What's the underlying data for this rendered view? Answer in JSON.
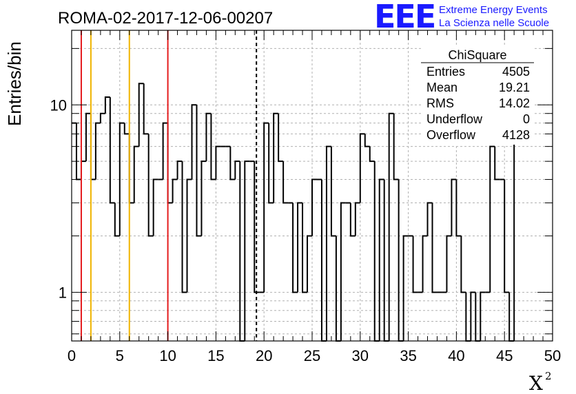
{
  "title": "ROMA-02-2017-12-06-00207",
  "logo": {
    "mark": "EEE",
    "line1": "Extreme Energy Events",
    "line2": "La Scienza nelle Scuole",
    "color": "#1a1aff"
  },
  "stats": {
    "name": "ChiSquare",
    "rows": [
      {
        "label": "Entries",
        "value": "4505"
      },
      {
        "label": "Mean",
        "value": "19.21"
      },
      {
        "label": "RMS",
        "value": "14.02"
      },
      {
        "label": "Underflow",
        "value": "0"
      },
      {
        "label": "Overflow",
        "value": "4128"
      }
    ]
  },
  "chart_data": {
    "type": "bar",
    "histogram": "step",
    "title": "ROMA-02-2017-12-06-00207",
    "xlabel": "X",
    "xlabel_superscript": "2",
    "ylabel": "Entries/bin",
    "xlim": [
      0,
      50
    ],
    "ylim": [
      0.55,
      25
    ],
    "yscale": "log",
    "grid": true,
    "legend": "top-right",
    "x_ticks": [
      0,
      5,
      10,
      15,
      20,
      25,
      30,
      35,
      40,
      45,
      50
    ],
    "y_ticks": [
      {
        "value": 1,
        "label": "1"
      },
      {
        "value": 10,
        "label": "10"
      }
    ],
    "bin_width": 0.5,
    "bin_start": 0,
    "values": [
      8,
      4,
      5,
      9,
      4,
      8,
      9,
      11,
      3,
      2,
      8,
      7,
      3,
      6,
      13,
      7,
      2,
      4,
      4,
      8,
      3,
      4,
      5,
      1,
      4,
      10,
      2,
      5,
      9,
      4,
      6,
      6,
      6,
      4,
      5,
      0,
      5,
      5,
      1,
      1,
      8,
      3,
      9,
      5,
      3,
      3,
      1,
      3,
      1,
      2,
      4,
      4,
      0,
      6,
      2,
      0,
      3,
      3,
      2,
      3,
      7,
      6,
      5,
      0,
      4,
      0,
      9,
      4,
      0,
      2,
      2,
      1,
      1,
      2,
      3,
      1,
      1,
      1,
      2,
      4,
      2,
      1,
      0,
      1,
      0,
      1,
      1,
      6,
      4,
      4,
      1,
      0,
      8,
      8
    ],
    "reference_lines": [
      {
        "x": 1,
        "color": "#e41a1c",
        "style": "solid"
      },
      {
        "x": 2,
        "color": "#f0b400",
        "style": "solid"
      },
      {
        "x": 6,
        "color": "#f0b400",
        "style": "solid"
      },
      {
        "x": 10,
        "color": "#e41a1c",
        "style": "solid"
      },
      {
        "x": 19.21,
        "color": "#000000",
        "style": "dashed"
      }
    ],
    "line_color": "#000000"
  }
}
